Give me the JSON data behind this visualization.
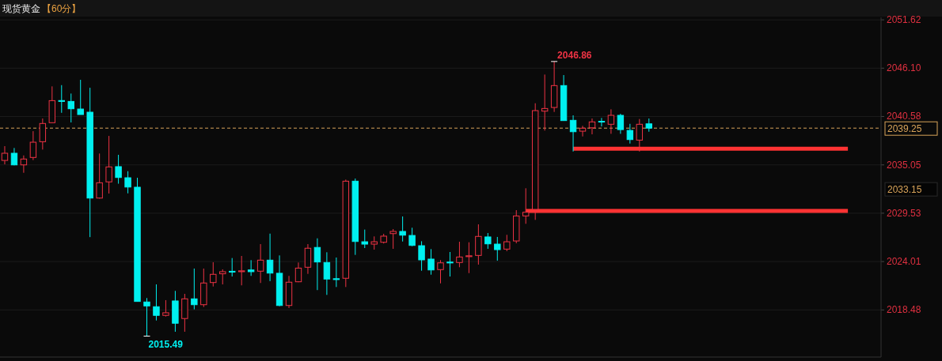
{
  "chart_data": {
    "type": "candlestick",
    "title": "现货黄金",
    "subtitle": "【60分】",
    "categories": [
      null,
      null,
      null,
      null,
      null,
      null,
      null,
      null,
      null,
      null,
      null,
      null,
      null,
      null,
      null,
      null,
      null,
      null,
      null,
      null,
      null,
      null,
      null,
      null,
      null,
      null,
      null,
      null,
      null,
      null,
      null,
      null,
      null,
      null,
      null,
      null,
      null,
      null,
      null,
      null,
      null,
      null,
      null,
      null,
      null,
      null,
      null,
      null,
      null,
      null,
      null,
      null,
      null,
      null,
      null,
      null,
      null,
      null,
      null,
      null,
      null,
      null,
      null,
      null,
      null,
      null,
      null,
      null,
      null,
      null,
      null,
      null,
      null,
      null,
      null,
      null,
      null,
      null,
      null,
      null,
      null,
      null,
      null,
      null,
      null,
      null,
      null,
      null,
      null,
      null,
      null,
      null,
      null
    ],
    "ohlc": [
      [
        2035.56,
        2037.19,
        2035.11,
        2036.38
      ],
      [
        2036.38,
        2036.98,
        2035.0,
        2035.05
      ],
      [
        2035.05,
        2036.13,
        2034.15,
        2035.72
      ],
      [
        2035.9,
        2038.9,
        2035.6,
        2037.64
      ],
      [
        2037.7,
        2040.35,
        2036.8,
        2039.78
      ],
      [
        2039.87,
        2044.02,
        2039.87,
        2042.39
      ],
      [
        2042.4,
        2044.16,
        2041.0,
        2042.3
      ],
      [
        2042.3,
        2043.2,
        2039.9,
        2041.46
      ],
      [
        2041.43,
        2044.77,
        2040.8,
        2040.8
      ],
      [
        2041.07,
        2043.86,
        2026.8,
        2031.26
      ],
      [
        2031.26,
        2036.35,
        2031.2,
        2033.01
      ],
      [
        2033.11,
        2038.36,
        2031.78,
        2034.82
      ],
      [
        2034.85,
        2036.2,
        2032.9,
        2033.61
      ],
      [
        2033.58,
        2034.33,
        2031.8,
        2032.52
      ],
      [
        2032.5,
        2033.58,
        2019.45,
        2019.45
      ],
      [
        2019.39,
        2019.84,
        2015.49,
        2018.94
      ],
      [
        2018.85,
        2021.4,
        2017.28,
        2017.86
      ],
      [
        2017.86,
        2019.6,
        2017.73,
        2018.16
      ],
      [
        2019.51,
        2020.66,
        2015.99,
        2016.96
      ],
      [
        2017.5,
        2020.32,
        2015.99,
        2019.75
      ],
      [
        2019.75,
        2023.21,
        2018.55,
        2019.08
      ],
      [
        2019.08,
        2023.21,
        2018.82,
        2021.56
      ],
      [
        2021.61,
        2023.93,
        2021.16,
        2022.55
      ],
      [
        2022.61,
        2023.12,
        2021.4,
        2022.85
      ],
      [
        2022.9,
        2024.41,
        2022.3,
        2022.8
      ],
      [
        2022.85,
        2024.65,
        2021.29,
        2022.95
      ],
      [
        2023.05,
        2024.17,
        2022.37,
        2022.85
      ],
      [
        2022.91,
        2026.0,
        2021.56,
        2024.17
      ],
      [
        2024.17,
        2027.2,
        2021.77,
        2022.69
      ],
      [
        2022.67,
        2024.71,
        2018.9,
        2018.99
      ],
      [
        2018.99,
        2022.37,
        2018.7,
        2021.65
      ],
      [
        2021.7,
        2023.9,
        2021.65,
        2023.26
      ],
      [
        2023.36,
        2026.0,
        2022.6,
        2025.53
      ],
      [
        2025.62,
        2026.66,
        2020.75,
        2023.96
      ],
      [
        2023.9,
        2025.07,
        2020.2,
        2022.01
      ],
      [
        2022.05,
        2024.47,
        2021.1,
        2021.95
      ],
      [
        2022.1,
        2033.37,
        2021.1,
        2033.19
      ],
      [
        2033.19,
        2033.49,
        2024.77,
        2026.3
      ],
      [
        2026.27,
        2027.66,
        2025.55,
        2026.0
      ],
      [
        2026.0,
        2026.88,
        2025.37,
        2026.27
      ],
      [
        2026.21,
        2027.18,
        2026.07,
        2026.91
      ],
      [
        2027.2,
        2027.72,
        2025.46,
        2027.45
      ],
      [
        2027.45,
        2029.16,
        2026.3,
        2027.02
      ],
      [
        2026.99,
        2027.87,
        2025.76,
        2025.85
      ],
      [
        2025.82,
        2026.33,
        2022.96,
        2024.2
      ],
      [
        2024.29,
        2025.43,
        2022.51,
        2023.05
      ],
      [
        2023.09,
        2024.17,
        2021.52,
        2023.86
      ],
      [
        2023.95,
        2025.1,
        2022.3,
        2023.85
      ],
      [
        2023.9,
        2026.27,
        2023.36,
        2024.53
      ],
      [
        2024.57,
        2026.21,
        2022.69,
        2024.67
      ],
      [
        2024.71,
        2028.26,
        2023.66,
        2026.88
      ],
      [
        2026.82,
        2027.27,
        2025.46,
        2026.03
      ],
      [
        2026.0,
        2026.82,
        2024.11,
        2025.37
      ],
      [
        2025.43,
        2027.06,
        2025.19,
        2026.27
      ],
      [
        2026.36,
        2029.88,
        2026.1,
        2029.22
      ],
      [
        2029.22,
        2032.38,
        2028.32,
        2029.64
      ],
      [
        2029.97,
        2042.09,
        2028.77,
        2041.25
      ],
      [
        2041.19,
        2045.37,
        2038.97,
        2041.49
      ],
      [
        2041.61,
        2046.86,
        2041.1,
        2044.11
      ],
      [
        2044.11,
        2045.31,
        2040.11,
        2040.11
      ],
      [
        2040.14,
        2040.71,
        2036.58,
        2038.84
      ],
      [
        2038.9,
        2039.51,
        2038.3,
        2039.24
      ],
      [
        2039.29,
        2040.35,
        2038.54,
        2039.96
      ],
      [
        2040.03,
        2040.41,
        2039.44,
        2039.95
      ],
      [
        2039.69,
        2041.4,
        2038.6,
        2040.71
      ],
      [
        2040.71,
        2040.89,
        2038.6,
        2039.08
      ],
      [
        2038.99,
        2039.74,
        2037.49,
        2037.94
      ],
      [
        2037.88,
        2040.29,
        2036.58,
        2039.69
      ],
      [
        2039.74,
        2040.35,
        2038.84,
        2039.25
      ],
      null,
      null,
      null,
      null,
      null,
      null,
      null,
      null,
      null,
      null,
      null,
      null,
      null,
      null,
      null,
      null,
      null,
      null,
      null,
      null,
      null,
      null,
      null,
      null
    ],
    "colors": [
      "#ee3344",
      "#00f0f0",
      "#ee3344",
      "#ee3344",
      "#ee3344",
      "#ee3344",
      "#00f0f0",
      "#00f0f0",
      "#00f0f0",
      "#00f0f0",
      "#ee3344",
      "#ee3344",
      "#00f0f0",
      "#00f0f0",
      "#00f0f0",
      "#00f0f0",
      "#00f0f0",
      "#ee3344",
      "#00f0f0",
      "#ee3344",
      "#00f0f0",
      "#ee3344",
      "#ee3344",
      "#ee3344",
      "#00f0f0",
      "#ee3344",
      "#00f0f0",
      "#ee3344",
      "#00f0f0",
      "#00f0f0",
      "#ee3344",
      "#ee3344",
      "#ee3344",
      "#00f0f0",
      "#00f0f0",
      "#00f0f0",
      "#ee3344",
      "#00f0f0",
      "#00f0f0",
      "#ee3344",
      "#ee3344",
      "#ee3344",
      "#00f0f0",
      "#00f0f0",
      "#00f0f0",
      "#00f0f0",
      "#ee3344",
      "#00f0f0",
      "#ee3344",
      "#ee3344",
      "#ee3344",
      "#00f0f0",
      "#00f0f0",
      "#ee3344",
      "#ee3344",
      "#ee3344",
      "#ee3344",
      "#ee3344",
      "#ee3344",
      "#00f0f0",
      "#00f0f0",
      "#ee3344",
      "#ee3344",
      "#00f0f0",
      "#ee3344",
      "#00f0f0",
      "#00f0f0",
      "#ee3344",
      "#00f0f0",
      null,
      null,
      null,
      null,
      null,
      null,
      null,
      null,
      null,
      null,
      null,
      null,
      null,
      null,
      null,
      null,
      null,
      null,
      null,
      null,
      null,
      null,
      null,
      null
    ],
    "series": [
      {
        "type": "line",
        "color": "#ff3333",
        "values": [
          null,
          null,
          null,
          null,
          null,
          null,
          null,
          null,
          null,
          null,
          null,
          null,
          null,
          null,
          null,
          null,
          null,
          null,
          null,
          null,
          null,
          null,
          null,
          null,
          null,
          null,
          null,
          null,
          null,
          null,
          null,
          null,
          null,
          null,
          null,
          null,
          null,
          null,
          null,
          null,
          null,
          null,
          null,
          null,
          null,
          null,
          null,
          null,
          null,
          null,
          null,
          null,
          null,
          null,
          null,
          2029.8,
          2029.8,
          2029.8,
          2029.8,
          2029.8,
          2029.8,
          2029.8,
          2029.8,
          2029.8,
          2029.8,
          2029.8,
          2029.8,
          2029.8,
          2029.8,
          2029.8,
          2029.8,
          2029.8,
          2029.8,
          2029.8,
          2029.8,
          2029.8,
          2029.8,
          2029.8,
          2029.8,
          2029.8,
          2029.8,
          2029.8,
          2029.8,
          2029.8,
          2029.8,
          2029.8,
          2029.8,
          2029.8,
          2029.8,
          2029.8,
          null,
          null,
          null
        ]
      },
      {
        "type": "line",
        "color": "#ff3333",
        "values": [
          null,
          null,
          null,
          null,
          null,
          null,
          null,
          null,
          null,
          null,
          null,
          null,
          null,
          null,
          null,
          null,
          null,
          null,
          null,
          null,
          null,
          null,
          null,
          null,
          null,
          null,
          null,
          null,
          null,
          null,
          null,
          null,
          null,
          null,
          null,
          null,
          null,
          null,
          null,
          null,
          null,
          null,
          null,
          null,
          null,
          null,
          null,
          null,
          null,
          null,
          null,
          null,
          null,
          null,
          null,
          null,
          null,
          null,
          null,
          null,
          2036.9,
          2036.9,
          2036.9,
          2036.9,
          2036.9,
          2036.9,
          2036.9,
          2036.9,
          2036.9,
          2036.9,
          2036.9,
          2036.9,
          2036.9,
          2036.9,
          2036.9,
          2036.9,
          2036.9,
          2036.9,
          2036.9,
          2036.9,
          2036.9,
          2036.9,
          2036.9,
          2036.9,
          2036.9,
          2036.9,
          2036.9,
          2036.9,
          2036.9,
          2036.9,
          null,
          null,
          null
        ]
      }
    ],
    "ylim": [
      2013.1,
      2051.9
    ],
    "yticks": [
      2018.48,
      2024.01,
      2029.53,
      2035.05,
      {
        "value": 2040.58,
        "label": "2040.58"
      },
      {
        "value": 2046.1,
        "label": "2046.10"
      },
      2051.62
    ],
    "grid": "y",
    "tick_labels": "y",
    "ref_lines": [
      {
        "axis": "y",
        "value": 2039.25,
        "label": "2039.25",
        "color": "#d9a45a",
        "line_style": "dashed"
      }
    ],
    "annotations": [
      "2046.86",
      "2015.49",
      "2033.15"
    ]
  }
}
